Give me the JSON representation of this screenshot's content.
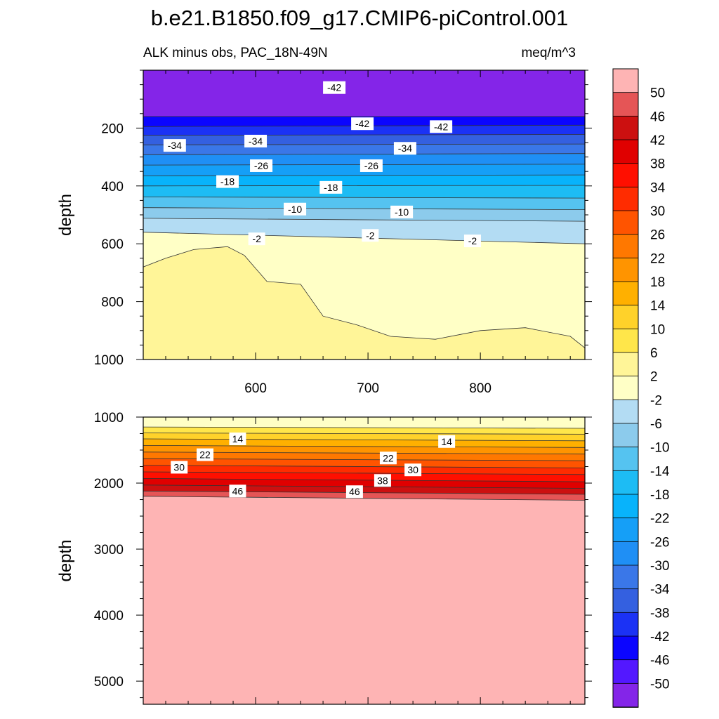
{
  "chart_data": {
    "type": "contour",
    "title": "b.e21.B1850.f09_g17.CMIP6-piControl.001",
    "colorbar": {
      "levels": [
        -50,
        -46,
        -42,
        -38,
        -34,
        -30,
        -26,
        -22,
        -18,
        -14,
        -10,
        -6,
        -2,
        2,
        6,
        10,
        14,
        18,
        22,
        26,
        30,
        34,
        38,
        42,
        46,
        50
      ],
      "colors": [
        "#8425e8",
        "#5318ff",
        "#0b05ff",
        "#1b32f5",
        "#3460e0",
        "#3a77e8",
        "#1f8ff5",
        "#159ff7",
        "#08b3fb",
        "#1dbcf4",
        "#55c3f0",
        "#8ccbec",
        "#b3dcf3",
        "#ffffc6",
        "#fff598",
        "#ffe64a",
        "#ffd22a",
        "#ffb000",
        "#ff9400",
        "#ff7800",
        "#ff5400",
        "#ff2c00",
        "#ff0f00",
        "#e00000",
        "#cc1010",
        "#e55556",
        "#feb4b4"
      ]
    },
    "panels": [
      {
        "name": "upper",
        "subtitle_left": "ALK minus obs, PAC_18N-49N",
        "subtitle_right": "meq/m^3",
        "xlim": [
          500,
          893
        ],
        "ylim": [
          1000,
          0
        ],
        "xticks": [
          600,
          700,
          800
        ],
        "yticks": [
          200,
          400,
          600,
          800,
          1000
        ],
        "ylabel": "depth",
        "isolines": [
          {
            "value": -46,
            "x": [
              500,
              893
            ],
            "depth": [
              160,
              160
            ]
          },
          {
            "value": -42,
            "x": [
              500,
              893
            ],
            "depth": [
              195,
              190
            ]
          },
          {
            "value": -38,
            "x": [
              500,
              893
            ],
            "depth": [
              225,
              222
            ]
          },
          {
            "value": -34,
            "x": [
              500,
              893
            ],
            "depth": [
              258,
              255
            ]
          },
          {
            "value": -30,
            "x": [
              500,
              893
            ],
            "depth": [
              292,
              288
            ]
          },
          {
            "value": -26,
            "x": [
              500,
              893
            ],
            "depth": [
              328,
              325
            ]
          },
          {
            "value": -22,
            "x": [
              500,
              893
            ],
            "depth": [
              365,
              362
            ]
          },
          {
            "value": -18,
            "x": [
              500,
              893
            ],
            "depth": [
              400,
              398
            ]
          },
          {
            "value": -14,
            "x": [
              500,
              893
            ],
            "depth": [
              438,
              442
            ]
          },
          {
            "value": -10,
            "x": [
              500,
              893
            ],
            "depth": [
              475,
              482
            ]
          },
          {
            "value": -6,
            "x": [
              500,
              893
            ],
            "depth": [
              512,
              522
            ]
          },
          {
            "value": -2,
            "x": [
              500,
              893
            ],
            "depth": [
              560,
              600
            ]
          },
          {
            "value": 2,
            "x": [
              500,
              520,
              545,
              575,
              590,
              610,
              640,
              660,
              690,
              720,
              760,
              800,
              840,
              880,
              893
            ],
            "depth": [
              680,
              650,
              620,
              610,
              640,
              730,
              740,
              850,
              880,
              920,
              930,
              900,
              890,
              920,
              960
            ]
          }
        ],
        "labels": [
          {
            "text": "-42",
            "x": 670,
            "depth": 60
          },
          {
            "text": "-42",
            "x": 695,
            "depth": 185
          },
          {
            "text": "-42",
            "x": 765,
            "depth": 195
          },
          {
            "text": "-34",
            "x": 528,
            "depth": 260
          },
          {
            "text": "-34",
            "x": 600,
            "depth": 245
          },
          {
            "text": "-34",
            "x": 733,
            "depth": 270
          },
          {
            "text": "-26",
            "x": 605,
            "depth": 330
          },
          {
            "text": "-26",
            "x": 703,
            "depth": 330
          },
          {
            "text": "-18",
            "x": 575,
            "depth": 385
          },
          {
            "text": "-18",
            "x": 667,
            "depth": 405
          },
          {
            "text": "-10",
            "x": 635,
            "depth": 480
          },
          {
            "text": "-10",
            "x": 730,
            "depth": 490
          },
          {
            "text": "-2",
            "x": 601,
            "depth": 583
          },
          {
            "text": "-2",
            "x": 702,
            "depth": 571
          },
          {
            "text": "-2",
            "x": 793,
            "depth": 590
          }
        ]
      },
      {
        "name": "lower",
        "ylim": [
          5350,
          1000
        ],
        "yticks": [
          1000,
          2000,
          3000,
          4000,
          5000
        ],
        "ylabel": "depth",
        "isolines": [
          {
            "value": 6,
            "x": [
              500,
              893
            ],
            "depth": [
              1150,
              1170
            ]
          },
          {
            "value": 10,
            "x": [
              500,
              893
            ],
            "depth": [
              1240,
              1260
            ]
          },
          {
            "value": 14,
            "x": [
              500,
              893
            ],
            "depth": [
              1330,
              1360
            ]
          },
          {
            "value": 18,
            "x": [
              500,
              893
            ],
            "depth": [
              1430,
              1460
            ]
          },
          {
            "value": 22,
            "x": [
              500,
              893
            ],
            "depth": [
              1530,
              1560
            ]
          },
          {
            "value": 26,
            "x": [
              500,
              893
            ],
            "depth": [
              1630,
              1660
            ]
          },
          {
            "value": 30,
            "x": [
              500,
              893
            ],
            "depth": [
              1730,
              1770
            ]
          },
          {
            "value": 34,
            "x": [
              500,
              893
            ],
            "depth": [
              1830,
              1870
            ]
          },
          {
            "value": 38,
            "x": [
              500,
              893
            ],
            "depth": [
              1930,
              1980
            ]
          },
          {
            "value": 42,
            "x": [
              500,
              893
            ],
            "depth": [
              2030,
              2080
            ]
          },
          {
            "value": 46,
            "x": [
              500,
              893
            ],
            "depth": [
              2120,
              2170
            ]
          },
          {
            "value": 50,
            "x": [
              500,
              893
            ],
            "depth": [
              2200,
              2260
            ]
          }
        ],
        "labels": [
          {
            "text": "14",
            "x": 584,
            "depth": 1330
          },
          {
            "text": "14",
            "x": 770,
            "depth": 1370
          },
          {
            "text": "22",
            "x": 555,
            "depth": 1570
          },
          {
            "text": "22",
            "x": 718,
            "depth": 1620
          },
          {
            "text": "30",
            "x": 532,
            "depth": 1760
          },
          {
            "text": "30",
            "x": 740,
            "depth": 1800
          },
          {
            "text": "38",
            "x": 713,
            "depth": 1960
          },
          {
            "text": "46",
            "x": 584,
            "depth": 2120
          },
          {
            "text": "46",
            "x": 688,
            "depth": 2130
          }
        ]
      }
    ]
  }
}
